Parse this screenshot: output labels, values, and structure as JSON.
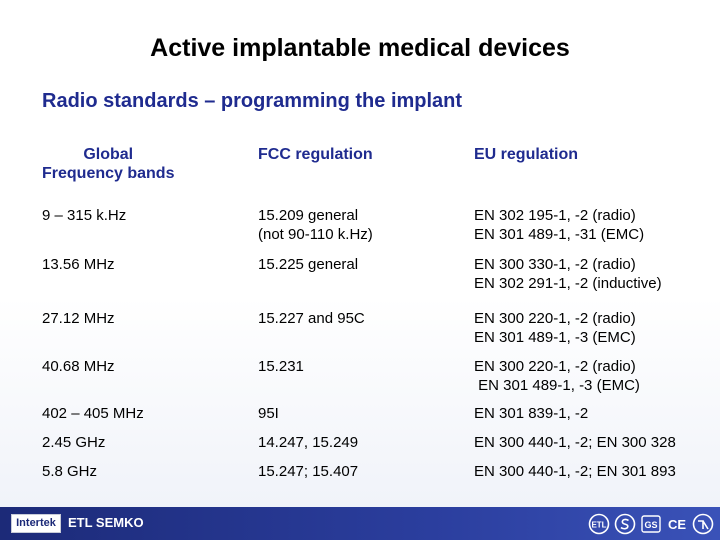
{
  "title": "Active implantable medical devices",
  "subtitle": "Radio standards – programming the implant",
  "table": {
    "headers": [
      "Global\nFrequency bands",
      "FCC regulation",
      "EU regulation"
    ],
    "rows": [
      [
        "9 – 315 k.Hz",
        "15.209 general\n(not 90-110 k.Hz)",
        "EN 302 195-1, -2 (radio)\nEN 301 489-1, -31 (EMC)"
      ],
      [
        "13.56 MHz",
        "15.225 general",
        "EN 300 330-1, -2 (radio)\nEN 302 291-1, -2 (inductive)"
      ],
      [
        "27.12 MHz",
        "15.227 and 95C",
        "EN 300 220-1, -2 (radio)\nEN 301 489-1, -3 (EMC)"
      ],
      [
        "40.68 MHz",
        "15.231",
        "EN 300 220-1, -2 (radio)\n EN 301 489-1, -3 (EMC)"
      ],
      [
        "402 – 405 MHz",
        "95I",
        "EN 301 839-1, -2"
      ],
      [
        "2.45 GHz",
        "14.247, 15.249",
        "EN 300 440-1, -2; EN 300 328"
      ],
      [
        "5.8 GHz",
        "15.247; 15.407",
        "EN 300 440-1, -2; EN 301 893"
      ]
    ]
  },
  "footer": {
    "logo": "Intertek",
    "brand": "ETL SEMKO",
    "mark_icons": [
      "etl-mark-icon",
      "s-mark-icon",
      "gs-mark-icon",
      "ce-mark-icon",
      "gost-mark-icon"
    ]
  },
  "colors": {
    "heading_blue": "#1f2b8f",
    "footer_blue": "#1c2a78"
  }
}
